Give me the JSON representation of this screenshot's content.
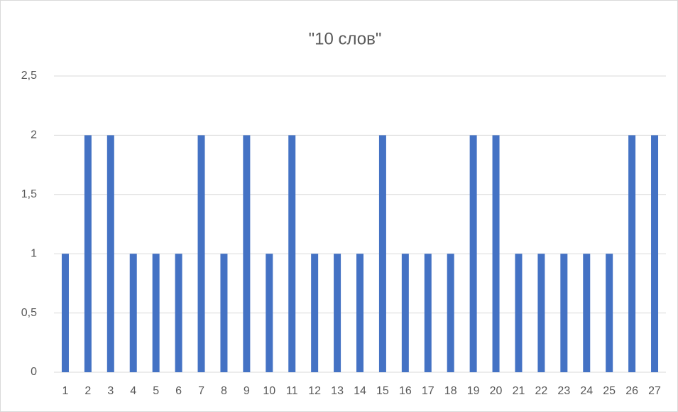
{
  "chart_data": {
    "type": "bar",
    "title": "\"10 слов\"",
    "categories": [
      "1",
      "2",
      "3",
      "4",
      "5",
      "6",
      "7",
      "8",
      "9",
      "10",
      "11",
      "12",
      "13",
      "14",
      "15",
      "16",
      "17",
      "18",
      "19",
      "20",
      "21",
      "22",
      "23",
      "24",
      "25",
      "26",
      "27"
    ],
    "values": [
      1,
      2,
      2,
      1,
      1,
      1,
      2,
      1,
      2,
      1,
      2,
      1,
      1,
      1,
      2,
      1,
      1,
      1,
      2,
      2,
      1,
      1,
      1,
      1,
      1,
      2,
      2
    ],
    "color": "#4472c4",
    "ylim": [
      0,
      2.5
    ],
    "yticks": [
      0,
      {
        "value": 0.5,
        "label": "0,5"
      },
      1,
      {
        "value": 1.5,
        "label": "1,5"
      },
      2,
      {
        "value": 2.5,
        "label": "2,5"
      }
    ],
    "grid": true
  }
}
